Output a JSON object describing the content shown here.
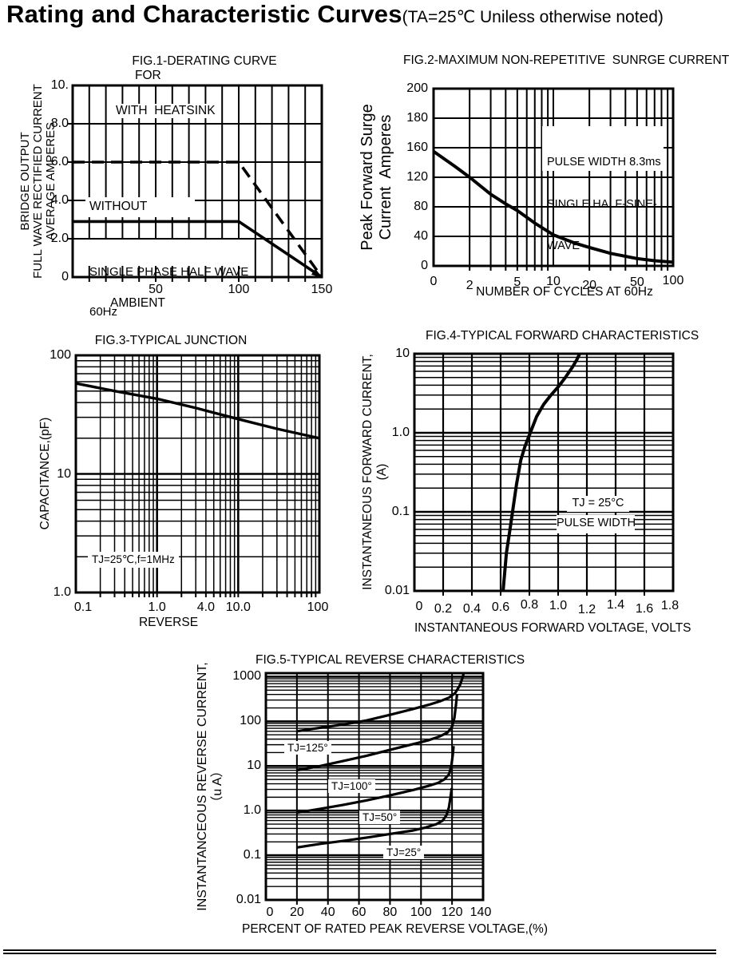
{
  "page": {
    "title": "Rating and Characteristic Curves",
    "title_note": "(TA=25℃ Uniless otherwise noted)"
  },
  "chart_data": [
    {
      "id": "fig1",
      "type": "line",
      "title": "FIG.1-DERATING CURVE",
      "title_line2": "FOR",
      "xlabel": "AMBIENT",
      "ylabel_lines": [
        "BRIDGE OUTPUT",
        "FULL WAVE RECTIFIED CURRENT",
        "AVERAGE AMPERES"
      ],
      "x_ticks": [
        "50",
        "100",
        "150"
      ],
      "y_ticks": [
        "10.",
        "8.0",
        "6.0",
        "4.0",
        "2.0",
        "0"
      ],
      "x_range": [
        0,
        150
      ],
      "y_range": [
        0,
        10
      ],
      "grid": "linear-linear",
      "annotations": {
        "with_heatsink": "WITH  HEATSINK",
        "without_heatsink": "WITHOUT",
        "phase_line1": "SINGLE PHASE HALF WAVE",
        "phase_line2": "60Hz"
      },
      "series": [
        {
          "name": "with heatsink",
          "style": "dashed",
          "points": [
            [
              0,
              6
            ],
            [
              100,
              6
            ],
            [
              150,
              0
            ]
          ]
        },
        {
          "name": "without heatsink",
          "style": "solid",
          "points": [
            [
              0,
              2.9
            ],
            [
              100,
              2.9
            ],
            [
              150,
              0
            ]
          ]
        }
      ]
    },
    {
      "id": "fig2",
      "type": "line",
      "title": "FIG.2-MAXIMUM NON-REPETITIVE  SUNRGE CURRENT",
      "xlabel": "NUMBER OF CYCLES AT 60Hz",
      "ylabel_lines": [
        "Peak Forward Surge",
        "Current  Amperes"
      ],
      "x_ticks": [
        "0",
        "2",
        "5",
        "10",
        "20",
        "50",
        "100"
      ],
      "y_ticks": [
        "200",
        "180",
        "160",
        "120",
        "80",
        "40",
        "0"
      ],
      "x_scale": "log 1-100",
      "y_tick_values": [
        200,
        180,
        160,
        120,
        80,
        40,
        0
      ],
      "annotations": {
        "pulse_line1": "PULSE WIDTH 8.3ms",
        "pulse_line2": "SINGLE HALF-SINE-",
        "pulse_line3": "WAVE"
      },
      "series": [
        {
          "name": "peak forward surge current",
          "style": "solid",
          "points": [
            [
              1,
              155
            ],
            [
              1.5,
              135
            ],
            [
              2,
              120
            ],
            [
              3,
              97
            ],
            [
              4,
              84
            ],
            [
              5,
              75
            ],
            [
              7,
              58
            ],
            [
              10,
              42
            ],
            [
              15,
              31
            ],
            [
              20,
              25
            ],
            [
              30,
              17
            ],
            [
              50,
              10
            ],
            [
              70,
              7
            ],
            [
              100,
              5
            ]
          ]
        }
      ]
    },
    {
      "id": "fig3",
      "type": "line",
      "title": "FIG.3-TYPICAL JUNCTION",
      "xlabel": "REVERSE",
      "ylabel_lines": [
        "CAPACITANCE,(pF)"
      ],
      "x_ticks": [
        "0.1",
        "1.0",
        "4.0",
        "10.0",
        "100"
      ],
      "y_ticks": [
        "100",
        "10",
        "1.0"
      ],
      "x_range": [
        0.1,
        100
      ],
      "y_range": [
        1,
        100
      ],
      "grid": "log-log",
      "annotations": {
        "condition": "TJ=25℃,f=1MHz"
      },
      "series": [
        {
          "name": "junction capacitance",
          "style": "solid",
          "points": [
            [
              0.1,
              58
            ],
            [
              0.3,
              50
            ],
            [
              1,
              43
            ],
            [
              3,
              36
            ],
            [
              10,
              29
            ],
            [
              30,
              24
            ],
            [
              100,
              20
            ]
          ]
        }
      ]
    },
    {
      "id": "fig4",
      "type": "line",
      "title": "FIG.4-TYPICAL FORWARD CHARACTERISTICS",
      "xlabel": "INSTANTANEOUS FORWARD VOLTAGE, VOLTS",
      "ylabel_lines": [
        "INSTANTANEOUS FORWARD CURRENT,",
        "(A)"
      ],
      "x_ticks": [
        "0",
        "0.2",
        "0.4",
        "0.6",
        "0.8",
        "1.0",
        "1.2",
        "1.4",
        "1.6",
        "1.8"
      ],
      "y_ticks": [
        "10",
        "1.0",
        "0.1",
        "0.01"
      ],
      "x_range": [
        0,
        1.8
      ],
      "y_range": [
        0.01,
        10
      ],
      "grid": "linear-log",
      "annotations": {
        "tj": "TJ = 25°C",
        "pulse": "PULSE WIDTH"
      },
      "series": [
        {
          "name": "forward characteristic",
          "style": "solid",
          "points": [
            [
              0.617,
              0.01
            ],
            [
              0.64,
              0.03
            ],
            [
              0.665,
              0.06
            ],
            [
              0.683,
              0.1
            ],
            [
              0.71,
              0.22
            ],
            [
              0.74,
              0.45
            ],
            [
              0.77,
              0.68
            ],
            [
              0.806,
              1.0
            ],
            [
              0.85,
              1.6
            ],
            [
              0.9,
              2.3
            ],
            [
              0.95,
              3.0
            ],
            [
              1.0,
              3.8
            ],
            [
              1.05,
              5.0
            ],
            [
              1.1,
              6.8
            ],
            [
              1.13,
              8.4
            ],
            [
              1.15,
              10
            ]
          ]
        }
      ]
    },
    {
      "id": "fig5",
      "type": "line",
      "title": "FIG.5-TYPICAL REVERSE CHARACTERISTICS",
      "xlabel": "PERCENT OF RATED PEAK REVERSE VOLTAGE,(%)",
      "ylabel_lines": [
        "INSTANTANCEOUS REVERSE CURRENT,",
        "（u A）"
      ],
      "x_ticks": [
        "0",
        "20",
        "40",
        "60",
        "80",
        "100",
        "120",
        "140"
      ],
      "y_ticks": [
        "1000",
        "100",
        "10",
        "1.0",
        "0.1",
        "0.01"
      ],
      "x_range": [
        0,
        140
      ],
      "y_range": [
        0.01,
        1200
      ],
      "grid": "linear-log",
      "curve_labels": {
        "tj125": "TJ=125°",
        "tj100": "TJ=100°",
        "tj50": "TJ=50°",
        "tj25": "TJ=25°"
      },
      "series": [
        {
          "name": "TJ=125°",
          "style": "solid",
          "points": [
            [
              20,
              60
            ],
            [
              35,
              72
            ],
            [
              50,
              85
            ],
            [
              65,
              105
            ],
            [
              80,
              140
            ],
            [
              95,
              190
            ],
            [
              105,
              235
            ],
            [
              112,
              280
            ],
            [
              118,
              340
            ],
            [
              122,
              430
            ],
            [
              125,
              640
            ],
            [
              126.5,
              900
            ],
            [
              127.5,
              1190
            ]
          ]
        },
        {
          "name": "TJ=100°",
          "style": "solid",
          "points": [
            [
              20,
              8
            ],
            [
              35,
              10
            ],
            [
              50,
              13
            ],
            [
              65,
              17
            ],
            [
              80,
              23
            ],
            [
              95,
              31
            ],
            [
              105,
              38
            ],
            [
              112,
              46
            ],
            [
              117,
              56
            ],
            [
              120,
              75
            ],
            [
              121.5,
              120
            ],
            [
              122.5,
              230
            ],
            [
              123.2,
              400
            ]
          ]
        },
        {
          "name": "TJ=50°",
          "style": "solid",
          "points": [
            [
              20,
              0.9
            ],
            [
              35,
              1.1
            ],
            [
              50,
              1.35
            ],
            [
              65,
              1.7
            ],
            [
              80,
              2.2
            ],
            [
              95,
              2.9
            ],
            [
              105,
              3.6
            ],
            [
              111,
              4.2
            ],
            [
              115,
              5
            ],
            [
              118,
              6.5
            ],
            [
              119.5,
              10
            ],
            [
              120.5,
              18
            ],
            [
              121,
              28
            ]
          ]
        },
        {
          "name": "TJ=25°",
          "style": "solid",
          "points": [
            [
              20,
              0.15
            ],
            [
              35,
              0.18
            ],
            [
              50,
              0.21
            ],
            [
              65,
              0.25
            ],
            [
              80,
              0.3
            ],
            [
              95,
              0.36
            ],
            [
              103,
              0.42
            ],
            [
              110,
              0.5
            ],
            [
              114,
              0.6
            ],
            [
              116.5,
              0.8
            ],
            [
              118,
              1.2
            ],
            [
              119,
              2
            ],
            [
              119.8,
              3.2
            ]
          ]
        }
      ]
    }
  ]
}
